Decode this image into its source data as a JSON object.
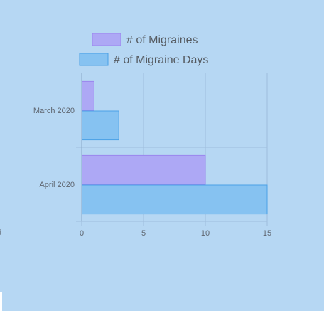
{
  "chart_data": {
    "type": "bar",
    "orientation": "horizontal",
    "categories": [
      "March 2020",
      "April 2020"
    ],
    "series": [
      {
        "name": "# of Migraines",
        "values": [
          1,
          10
        ],
        "fill": "#ada8f5",
        "stroke": "#9a86ee"
      },
      {
        "name": "# of Migraine Days",
        "values": [
          3,
          15
        ],
        "fill": "#86c2f1",
        "stroke": "#4aa0e6"
      }
    ],
    "x_ticks": [
      "0",
      "5",
      "10",
      "15"
    ],
    "xlim": [
      0,
      15
    ],
    "grid": true,
    "legend_position": "top",
    "colors": {
      "background": "#b6d7f3",
      "grid": "#9fbedc",
      "axis": "#8aa9c8"
    }
  },
  "stray_tick_label": "5"
}
